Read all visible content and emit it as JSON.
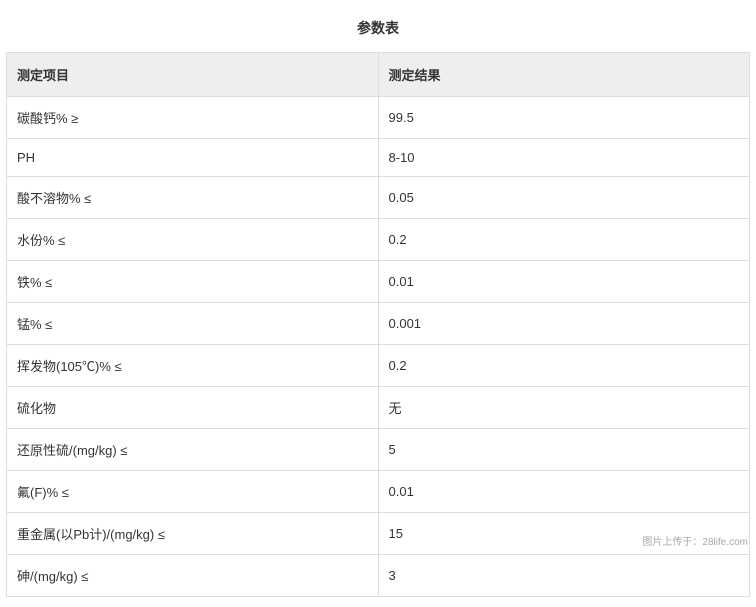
{
  "title": "参数表",
  "table": {
    "columns": [
      "测定项目",
      "测定结果"
    ],
    "rows": [
      {
        "item": "碳酸钙% ≥",
        "result": "99.5"
      },
      {
        "item": "PH",
        "result": "8-10"
      },
      {
        "item": "酸不溶物% ≤",
        "result": "0.05"
      },
      {
        "item": "水份% ≤",
        "result": "0.2"
      },
      {
        "item": "铁% ≤",
        "result": "0.01"
      },
      {
        "item": "锰% ≤",
        "result": "0.001"
      },
      {
        "item": "挥发物(105℃)% ≤",
        "result": "0.2"
      },
      {
        "item": "硫化物",
        "result": "无"
      },
      {
        "item": "还原性硫/(mg/kg) ≤",
        "result": "5"
      },
      {
        "item": "氟(F)% ≤",
        "result": "0.01"
      },
      {
        "item": "重金属(以Pb计)/(mg/kg) ≤",
        "result": "15"
      },
      {
        "item": "砷/(mg/kg) ≤",
        "result": "3"
      }
    ],
    "header_bg": "#eeeeee",
    "border_color": "#dddddd",
    "text_color": "#333333",
    "font_size": 13
  },
  "watermark": "图片上传于：28life.com"
}
